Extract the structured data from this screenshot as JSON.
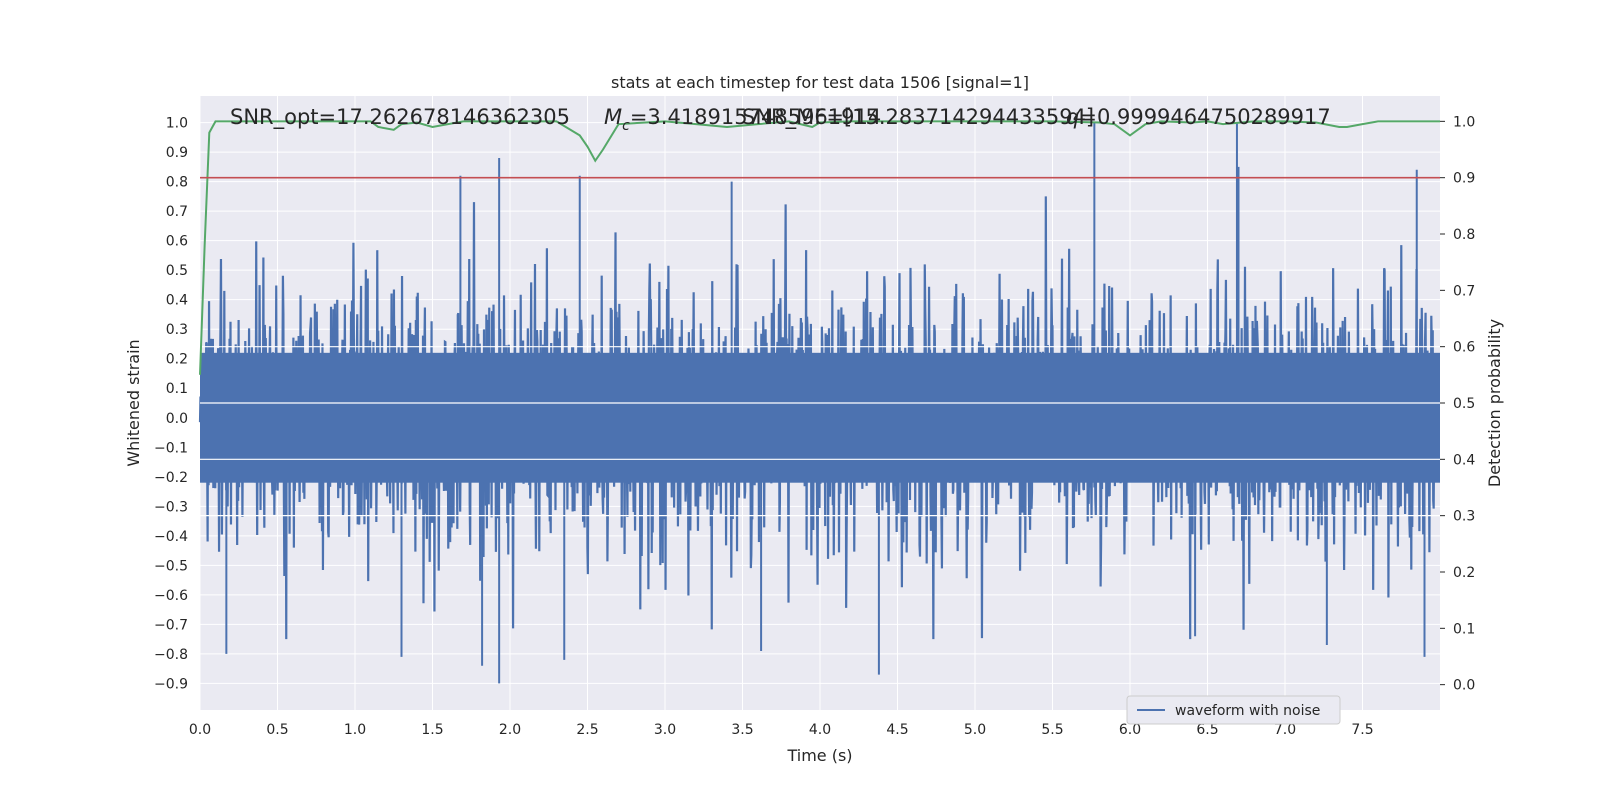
{
  "chart_data": {
    "type": "line",
    "title": "stats at each timestep for test data 1506 [signal=1]",
    "xlabel": "Time (s)",
    "ylabel": "Whitened strain",
    "y2label": "Detection probability",
    "xlim": [
      0.0,
      8.0
    ],
    "ylim": [
      -0.99,
      1.09
    ],
    "y2lim": [
      -0.045,
      1.045
    ],
    "x_ticks": [
      0.0,
      0.5,
      1.0,
      1.5,
      2.0,
      2.5,
      3.0,
      3.5,
      4.0,
      4.5,
      5.0,
      5.5,
      6.0,
      6.5,
      7.0,
      7.5
    ],
    "x_tick_labels": [
      "0.0",
      "0.5",
      "1.0",
      "1.5",
      "2.0",
      "2.5",
      "3.0",
      "3.5",
      "4.0",
      "4.5",
      "5.0",
      "5.5",
      "6.0",
      "6.5",
      "7.0",
      "7.5"
    ],
    "y_ticks": [
      -0.9,
      -0.8,
      -0.7,
      -0.6,
      -0.5,
      -0.4,
      -0.3,
      -0.2,
      -0.1,
      0.0,
      0.1,
      0.2,
      0.3,
      0.4,
      0.5,
      0.6,
      0.7,
      0.8,
      0.9,
      1.0
    ],
    "y_tick_labels": [
      "−0.9",
      "−0.8",
      "−0.7",
      "−0.6",
      "−0.5",
      "−0.4",
      "−0.3",
      "−0.2",
      "−0.1",
      "0.0",
      "0.1",
      "0.2",
      "0.3",
      "0.4",
      "0.5",
      "0.6",
      "0.7",
      "0.8",
      "0.9",
      "1.0"
    ],
    "y2_ticks": [
      0.0,
      0.1,
      0.2,
      0.3,
      0.4,
      0.5,
      0.6,
      0.7,
      0.8,
      0.9,
      1.0
    ],
    "y2_tick_labels": [
      "0.0",
      "0.1",
      "0.2",
      "0.3",
      "0.4",
      "0.5",
      "0.6",
      "0.7",
      "0.8",
      "0.9",
      "1.0"
    ],
    "grid": true,
    "legend": {
      "placement": "lower-right",
      "entries": [
        "waveform with noise"
      ]
    },
    "annotations": [
      {
        "text": "SNR_opt=17.262678146362305",
        "math": false
      },
      {
        "text": "=3.4189157485961914",
        "math": true,
        "symbol": "M",
        "subscript": "c"
      },
      {
        "text": "SNR_MF=[15.283714294433594]",
        "math": false
      },
      {
        "text": "=0.9999464750289917",
        "math": true,
        "symbol": "q",
        "subscript": ""
      }
    ],
    "series": [
      {
        "name": "waveform with noise",
        "axis": "left",
        "color": "#4c72b0",
        "kind": "noise",
        "envelope": [
          0.0,
          0.9,
          1.0
        ],
        "peaks": [
          {
            "x": 1.93,
            "y": 0.88
          },
          {
            "x": 1.93,
            "y": -0.9
          },
          {
            "x": 1.68,
            "y": 0.82
          },
          {
            "x": 2.45,
            "y": 0.82
          },
          {
            "x": 3.43,
            "y": 0.8
          },
          {
            "x": 5.77,
            "y": 1.0
          },
          {
            "x": 6.69,
            "y": 1.0
          },
          {
            "x": 6.7,
            "y": 0.85
          },
          {
            "x": 7.85,
            "y": 0.84
          },
          {
            "x": 4.38,
            "y": -0.87
          },
          {
            "x": 1.82,
            "y": -0.84
          },
          {
            "x": 2.35,
            "y": -0.82
          },
          {
            "x": 3.62,
            "y": -0.79
          },
          {
            "x": 0.17,
            "y": -0.8
          },
          {
            "x": 7.9,
            "y": -0.81
          },
          {
            "x": 7.27,
            "y": -0.77
          },
          {
            "x": 6.42,
            "y": -0.74
          },
          {
            "x": 1.3,
            "y": -0.81
          }
        ]
      },
      {
        "name": "",
        "axis": "right",
        "color": "#55a868",
        "kind": "line",
        "x": [
          0.0,
          0.03,
          0.06,
          0.1,
          0.15,
          0.2,
          0.4,
          0.6,
          0.8,
          1.0,
          1.1,
          1.15,
          1.25,
          1.3,
          1.4,
          1.5,
          1.6,
          1.7,
          2.0,
          2.3,
          2.45,
          2.5,
          2.55,
          2.6,
          2.7,
          3.0,
          3.2,
          3.4,
          3.6,
          3.8,
          3.95,
          4.0,
          4.2,
          4.5,
          5.0,
          5.5,
          5.8,
          5.9,
          6.0,
          6.1,
          6.2,
          6.4,
          6.5,
          6.6,
          6.8,
          7.0,
          7.2,
          7.35,
          7.4,
          7.5,
          7.6,
          8.0
        ],
        "y": [
          0.55,
          0.78,
          0.98,
          1.0,
          1.0,
          1.0,
          1.0,
          1.0,
          1.0,
          1.0,
          1.0,
          0.99,
          0.985,
          0.995,
          0.998,
          0.99,
          0.995,
          1.0,
          1.0,
          1.0,
          0.975,
          0.955,
          0.93,
          0.95,
          0.995,
          1.0,
          0.995,
          0.99,
          0.995,
          1.0,
          0.99,
          0.998,
          1.0,
          1.0,
          1.0,
          1.0,
          0.998,
          0.995,
          0.975,
          0.995,
          1.0,
          0.998,
          1.0,
          0.995,
          1.0,
          1.0,
          0.998,
          0.99,
          0.99,
          0.995,
          1.0,
          1.0
        ]
      },
      {
        "name": "",
        "axis": "right",
        "color": "#c44e52",
        "kind": "hline",
        "y": 0.9
      }
    ]
  }
}
